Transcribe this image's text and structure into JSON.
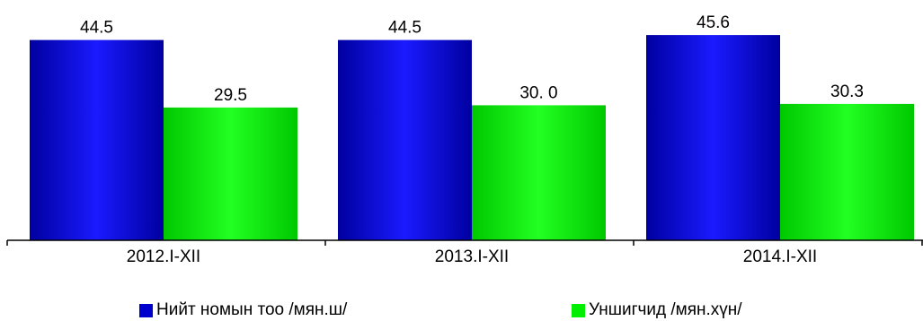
{
  "chart_data": {
    "type": "bar",
    "categories": [
      "2012.I-XII",
      "2013.I-XII",
      "2014.I-XII"
    ],
    "series": [
      {
        "name": "Нийт номын тоо /мян.ш/",
        "values": [
          44.5,
          44.5,
          45.6
        ],
        "labels": [
          "44.5",
          "44.5",
          "45.6"
        ],
        "color": "#0000cc",
        "gradient": [
          "#0000a0",
          "#1a1aff"
        ]
      },
      {
        "name": "Уншигчид /мян.хүн/",
        "values": [
          29.5,
          30.0,
          30.3
        ],
        "labels": [
          "29.5",
          "30. 0",
          "30.3"
        ],
        "color": "#00ee00",
        "gradient": [
          "#00c800",
          "#22ff22"
        ]
      }
    ],
    "ylim": [
      0,
      50
    ],
    "title": "",
    "xlabel": "",
    "ylabel": "",
    "grid": false,
    "legend_position": "bottom"
  }
}
